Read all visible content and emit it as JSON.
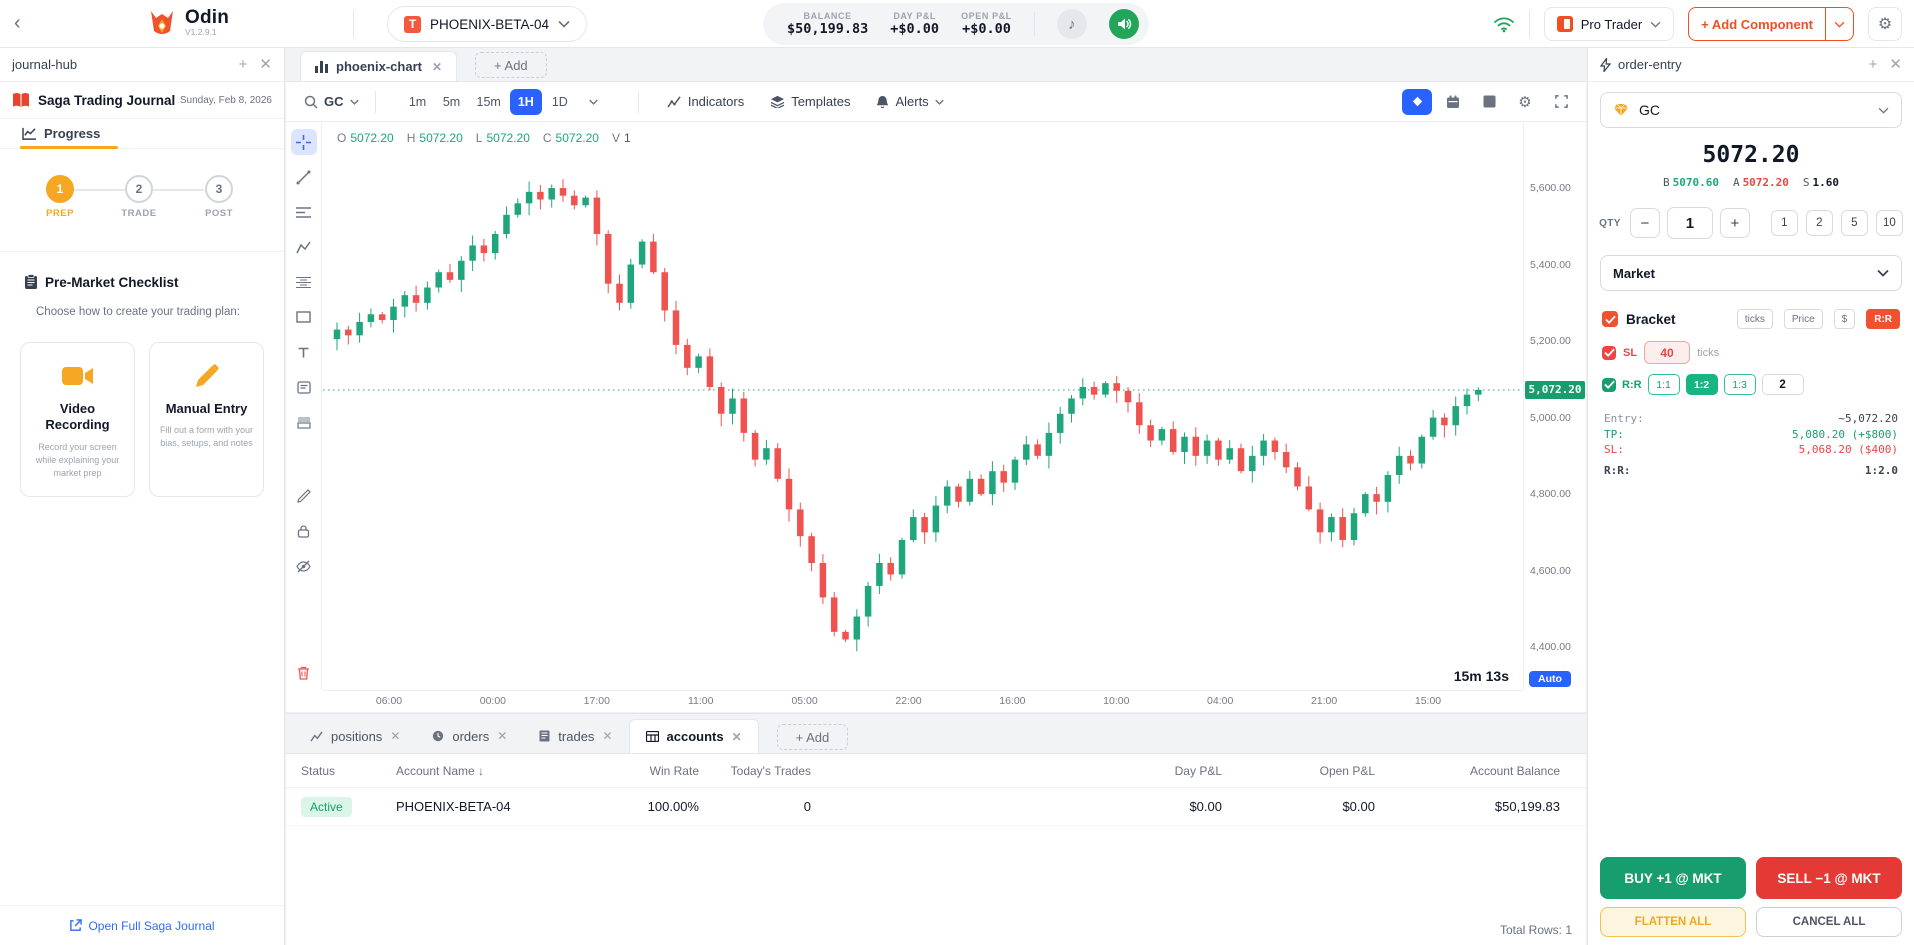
{
  "colors": {
    "accent_blue": "#2962ff",
    "candle_up": "#1fa67d",
    "candle_down": "#ef5350",
    "chip_green": "#189e6e",
    "orange": "#f5a623",
    "brand_red": "#f0512e"
  },
  "top_bar": {
    "app_name": "Odin",
    "app_version": "V1.2.9.1",
    "account": "PHOENIX-BETA-04",
    "stats": {
      "balance_label": "BALANCE",
      "balance": "$50,199.83",
      "day_pnl_label": "DAY P&L",
      "day_pnl": "+$0.00",
      "open_pnl_label": "OPEN P&L",
      "open_pnl": "+$0.00"
    },
    "layout_name": "Pro Trader",
    "add_component": "+ Add Component"
  },
  "journal": {
    "panel_title": "journal-hub",
    "app_title": "Saga Trading Journal",
    "date": "Sunday, Feb 8, 2026",
    "tab_label": "Progress",
    "steps": [
      {
        "num": "1",
        "label": "PREP"
      },
      {
        "num": "2",
        "label": "TRADE"
      },
      {
        "num": "3",
        "label": "POST"
      }
    ],
    "section_title": "Pre-Market Checklist",
    "section_subtitle": "Choose how to create your trading plan:",
    "cards": [
      {
        "title": "Video Recording",
        "desc": "Record your screen while explaining your market prep"
      },
      {
        "title": "Manual Entry",
        "desc": "Fill out a form with your bias, setups, and notes"
      }
    ],
    "footer_link": "Open Full Saga Journal"
  },
  "chart": {
    "tab_label": "phoenix-chart",
    "add_tab": "+ Add",
    "symbol": "GC",
    "timeframes": [
      "1m",
      "5m",
      "15m",
      "1H",
      "1D"
    ],
    "active_timeframe": "1H",
    "menu": {
      "indicators": "Indicators",
      "templates": "Templates",
      "alerts": "Alerts"
    },
    "ohlc": {
      "o_label": "O",
      "o": "5072.20",
      "h_label": "H",
      "h": "5072.20",
      "l_label": "L",
      "l": "5072.20",
      "c_label": "C",
      "c": "5072.20",
      "v_label": "V",
      "v": "1"
    },
    "countdown": "15m 13s",
    "auto_label": "Auto",
    "last_price_label": "5,072.20"
  },
  "chart_data": {
    "type": "candlestick",
    "symbol": "GC",
    "interval": "1H",
    "title": "",
    "y_axis": [
      {
        "value": 5600,
        "label": "5,600.00"
      },
      {
        "value": 5400,
        "label": "5,400.00"
      },
      {
        "value": 5200,
        "label": "5,200.00"
      },
      {
        "value": 5000,
        "label": "5,000.00"
      },
      {
        "value": 4800,
        "label": "4,800.00"
      },
      {
        "value": 4600,
        "label": "4,600.00"
      },
      {
        "value": 4400,
        "label": "4,400.00"
      }
    ],
    "x_labels": [
      "06:00",
      "00:00",
      "17:00",
      "11:00",
      "05:00",
      "22:00",
      "16:00",
      "10:00",
      "04:00",
      "21:00",
      "15:00"
    ],
    "price_range": [
      4288,
      5770
    ],
    "last_price": 5072.2,
    "closes": [
      5205,
      5230,
      5215,
      5250,
      5270,
      5255,
      5290,
      5320,
      5300,
      5340,
      5380,
      5360,
      5410,
      5450,
      5430,
      5480,
      5530,
      5560,
      5590,
      5570,
      5600,
      5580,
      5555,
      5575,
      5480,
      5350,
      5300,
      5400,
      5460,
      5380,
      5280,
      5190,
      5130,
      5160,
      5080,
      5010,
      5050,
      4960,
      4890,
      4920,
      4840,
      4760,
      4690,
      4620,
      4530,
      4440,
      4420,
      4480,
      4560,
      4620,
      4590,
      4680,
      4740,
      4700,
      4770,
      4820,
      4780,
      4840,
      4800,
      4860,
      4830,
      4890,
      4930,
      4900,
      4960,
      5010,
      5050,
      5080,
      5060,
      5090,
      5070,
      5040,
      4980,
      4940,
      4970,
      4910,
      4950,
      4900,
      4940,
      4890,
      4920,
      4860,
      4900,
      4940,
      4910,
      4870,
      4820,
      4760,
      4700,
      4740,
      4680,
      4750,
      4800,
      4780,
      4850,
      4900,
      4880,
      4950,
      5000,
      4980,
      5030,
      5060,
      5072.2
    ]
  },
  "bottom": {
    "tabs": [
      {
        "label": "positions"
      },
      {
        "label": "orders"
      },
      {
        "label": "trades"
      },
      {
        "label": "accounts"
      }
    ],
    "active_tab": "accounts",
    "add_tab": "+ Add",
    "columns": [
      "Status",
      "Account Name",
      "Win Rate",
      "Today's Trades",
      "Day P&L",
      "Open P&L",
      "Account Balance"
    ],
    "row": {
      "status": "Active",
      "account": "PHOENIX-BETA-04",
      "win_rate": "100.00%",
      "todays_trades": "0",
      "day_pnl": "$0.00",
      "open_pnl": "$0.00",
      "balance": "$50,199.83"
    },
    "total_rows": "Total Rows: 1"
  },
  "order_entry": {
    "panel_title": "order-entry",
    "symbol": "GC",
    "price": "5072.20",
    "bid_label": "B",
    "bid": "5070.60",
    "ask_label": "A",
    "ask": "5072.20",
    "spread_label": "S",
    "spread": "1.60",
    "qty_label": "QTY",
    "qty": "1",
    "qty_presets": [
      "1",
      "2",
      "5",
      "10"
    ],
    "order_type": "Market",
    "bracket_label": "Bracket",
    "modes": [
      "ticks",
      "Price",
      "$",
      "R:R"
    ],
    "active_mode": "R:R",
    "sl_label": "SL",
    "sl_value": "40",
    "sl_unit": "ticks",
    "rr_label": "R:R",
    "rr_presets": [
      "1:1",
      "1:2",
      "1:3",
      "2"
    ],
    "active_rr": "1:2",
    "summary": {
      "entry_label": "Entry:",
      "entry": "~5,072.20",
      "tp_label": "TP:",
      "tp": "5,080.20 (+$800)",
      "sl_label": "SL:",
      "sl": "5,068.20 ($400)",
      "rr_label": "R:R:",
      "rr": "1:2.0"
    },
    "buy_button": "BUY +1 @ MKT",
    "sell_button": "SELL −1 @ MKT",
    "flatten_button": "FLATTEN ALL",
    "cancel_button": "CANCEL ALL"
  }
}
